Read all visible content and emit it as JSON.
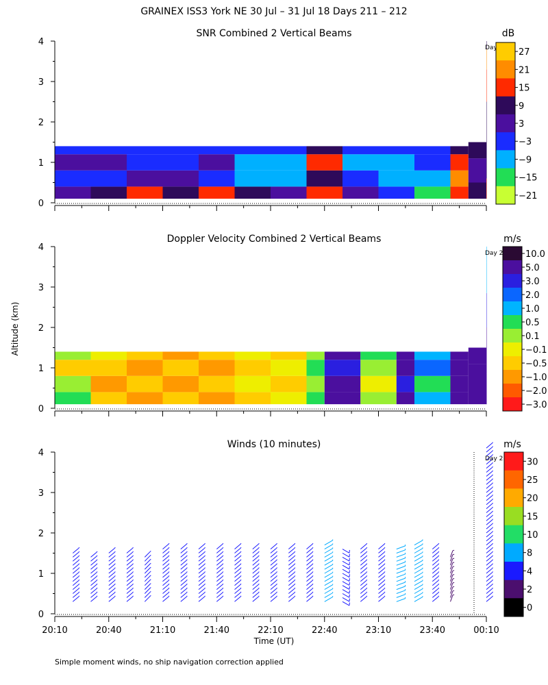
{
  "figure": {
    "title": "GRAINEX ISS3 York NE  30 Jul – 31 Jul 18 Days 211 – 212",
    "ylabel": "Altitude (km)",
    "xlabel": "Time (UT)",
    "footnote": "Simple moment winds, no ship navigation correction applied",
    "day_tag": "Day 2",
    "x_ticks": [
      "20:10",
      "20:40",
      "21:10",
      "21:40",
      "22:10",
      "22:40",
      "23:10",
      "23:40",
      "00:10"
    ],
    "y_ticks": [
      "0",
      "1",
      "2",
      "3",
      "4"
    ]
  },
  "chart_data": [
    {
      "type": "heatmap",
      "title": "SNR Combined 2 Vertical Beams",
      "units": "dB",
      "xlim": [
        "20:10",
        "00:10"
      ],
      "ylim": [
        0,
        4
      ],
      "ylabel": "Altitude (km)",
      "colorbar": {
        "labels": [
          "27",
          "21",
          "15",
          "9",
          "3",
          "−3",
          "−9",
          "−15",
          "−21"
        ],
        "values": [
          27,
          21,
          15,
          9,
          3,
          -3,
          -9,
          -15,
          -21
        ],
        "colors": [
          "#ffcc00",
          "#ff8c00",
          "#ff2a00",
          "#2e0a5a",
          "#4b0f9e",
          "#1a2cff",
          "#00b0ff",
          "#22dd55",
          "#c8ff33"
        ]
      },
      "columns": [
        {
          "time": "20:10",
          "top": 1.4,
          "profile": [
            [
              0.2,
              3
            ],
            [
              0.6,
              -3
            ],
            [
              1.0,
              3
            ],
            [
              1.4,
              -3
            ]
          ]
        },
        {
          "time": "20:30",
          "top": 1.4,
          "profile": [
            [
              0.2,
              9
            ],
            [
              0.6,
              -3
            ],
            [
              1.0,
              3
            ],
            [
              1.4,
              -3
            ]
          ]
        },
        {
          "time": "20:50",
          "top": 1.4,
          "profile": [
            [
              0.2,
              15
            ],
            [
              0.6,
              3
            ],
            [
              1.0,
              -3
            ],
            [
              1.4,
              -3
            ]
          ]
        },
        {
          "time": "21:10",
          "top": 1.4,
          "profile": [
            [
              0.2,
              9
            ],
            [
              0.6,
              3
            ],
            [
              1.0,
              -3
            ],
            [
              1.4,
              -3
            ]
          ]
        },
        {
          "time": "21:30",
          "top": 1.4,
          "profile": [
            [
              0.2,
              15
            ],
            [
              0.6,
              -3
            ],
            [
              1.0,
              3
            ],
            [
              1.4,
              -3
            ]
          ]
        },
        {
          "time": "21:50",
          "top": 1.4,
          "profile": [
            [
              0.2,
              9
            ],
            [
              0.6,
              -9
            ],
            [
              1.0,
              -9
            ],
            [
              1.4,
              -3
            ]
          ]
        },
        {
          "time": "22:10",
          "top": 1.4,
          "profile": [
            [
              0.2,
              3
            ],
            [
              0.6,
              -9
            ],
            [
              1.0,
              -9
            ],
            [
              1.4,
              -3
            ]
          ]
        },
        {
          "time": "22:30",
          "top": 1.4,
          "profile": [
            [
              0.2,
              15
            ],
            [
              0.6,
              9
            ],
            [
              1.0,
              15
            ],
            [
              1.4,
              9
            ]
          ]
        },
        {
          "time": "22:50",
          "top": 1.4,
          "profile": [
            [
              0.2,
              3
            ],
            [
              0.6,
              -3
            ],
            [
              1.0,
              -9
            ],
            [
              1.4,
              -3
            ]
          ]
        },
        {
          "time": "23:10",
          "top": 1.4,
          "profile": [
            [
              0.2,
              -3
            ],
            [
              0.6,
              -9
            ],
            [
              1.0,
              -9
            ],
            [
              1.4,
              -3
            ]
          ]
        },
        {
          "time": "23:30",
          "top": 1.4,
          "profile": [
            [
              0.2,
              -15
            ],
            [
              0.6,
              -9
            ],
            [
              1.0,
              -3
            ],
            [
              1.4,
              -3
            ]
          ]
        },
        {
          "time": "23:50",
          "top": 1.4,
          "profile": [
            [
              0.2,
              15
            ],
            [
              0.6,
              21
            ],
            [
              1.0,
              15
            ],
            [
              1.4,
              9
            ]
          ]
        },
        {
          "time": "00:00",
          "top": 1.5,
          "profile": [
            [
              0.2,
              9
            ],
            [
              0.8,
              3
            ],
            [
              1.4,
              9
            ]
          ]
        },
        {
          "time": "00:10",
          "top": 4.0,
          "profile": [
            [
              0.2,
              15
            ],
            [
              1.0,
              9
            ],
            [
              2.0,
              9
            ],
            [
              3.0,
              15
            ],
            [
              3.6,
              21
            ],
            [
              4.0,
              9
            ]
          ]
        }
      ]
    },
    {
      "type": "heatmap",
      "title": "Doppler Velocity Combined 2 Vertical Beams",
      "units": "m/s",
      "xlim": [
        "20:10",
        "00:10"
      ],
      "ylim": [
        0,
        4
      ],
      "ylabel": "Altitude (km)",
      "colorbar": {
        "labels": [
          "10.0",
          "5.0",
          "3.0",
          "2.0",
          "1.0",
          "0.5",
          "0.1",
          "−0.1",
          "−0.5",
          "−1.0",
          "−2.0",
          "−3.0"
        ],
        "values": [
          10.0,
          5.0,
          3.0,
          2.0,
          1.0,
          0.5,
          0.1,
          -0.1,
          -0.5,
          -1.0,
          -2.0,
          -3.0
        ],
        "colors": [
          "#2a0a33",
          "#4b0f9e",
          "#2a1fe0",
          "#0a66ff",
          "#00b4ff",
          "#22dd55",
          "#99ee33",
          "#eeee00",
          "#ffcc00",
          "#ff9900",
          "#ff5a00",
          "#ff1a1a"
        ]
      },
      "columns": [
        {
          "time": "20:10",
          "top": 1.4,
          "profile": [
            [
              0.2,
              0.5
            ],
            [
              0.6,
              0.1
            ],
            [
              1.0,
              -0.5
            ],
            [
              1.4,
              0.1
            ]
          ]
        },
        {
          "time": "20:30",
          "top": 1.4,
          "profile": [
            [
              0.2,
              -0.5
            ],
            [
              0.6,
              -1.0
            ],
            [
              1.0,
              -0.5
            ],
            [
              1.4,
              -0.1
            ]
          ]
        },
        {
          "time": "20:50",
          "top": 1.4,
          "profile": [
            [
              0.2,
              -1.0
            ],
            [
              0.6,
              -0.5
            ],
            [
              1.0,
              -1.0
            ],
            [
              1.4,
              -0.5
            ]
          ]
        },
        {
          "time": "21:10",
          "top": 1.4,
          "profile": [
            [
              0.2,
              -0.5
            ],
            [
              0.6,
              -1.0
            ],
            [
              1.0,
              -0.5
            ],
            [
              1.4,
              -1.0
            ]
          ]
        },
        {
          "time": "21:30",
          "top": 1.4,
          "profile": [
            [
              0.2,
              -1.0
            ],
            [
              0.6,
              -0.5
            ],
            [
              1.0,
              -1.0
            ],
            [
              1.4,
              -0.5
            ]
          ]
        },
        {
          "time": "21:50",
          "top": 1.4,
          "profile": [
            [
              0.2,
              -0.5
            ],
            [
              0.6,
              -0.1
            ],
            [
              1.0,
              -0.5
            ],
            [
              1.4,
              -0.1
            ]
          ]
        },
        {
          "time": "22:10",
          "top": 1.4,
          "profile": [
            [
              0.2,
              -0.1
            ],
            [
              0.6,
              -0.5
            ],
            [
              1.0,
              -0.1
            ],
            [
              1.4,
              -0.5
            ]
          ]
        },
        {
          "time": "22:30",
          "top": 1.4,
          "profile": [
            [
              0.2,
              0.5
            ],
            [
              0.6,
              0.1
            ],
            [
              1.0,
              0.5
            ],
            [
              1.4,
              0.1
            ]
          ]
        },
        {
          "time": "22:40",
          "top": 1.4,
          "profile": [
            [
              0.2,
              5.0
            ],
            [
              0.6,
              5.0
            ],
            [
              1.0,
              3.0
            ],
            [
              1.4,
              5.0
            ]
          ]
        },
        {
          "time": "23:00",
          "top": 1.4,
          "profile": [
            [
              0.2,
              0.1
            ],
            [
              0.6,
              -0.1
            ],
            [
              1.0,
              0.1
            ],
            [
              1.4,
              0.5
            ]
          ]
        },
        {
          "time": "23:20",
          "top": 1.4,
          "profile": [
            [
              0.2,
              5.0
            ],
            [
              0.6,
              3.0
            ],
            [
              1.0,
              5.0
            ],
            [
              1.4,
              5.0
            ]
          ]
        },
        {
          "time": "23:30",
          "top": 1.4,
          "profile": [
            [
              0.2,
              1.0
            ],
            [
              0.6,
              0.5
            ],
            [
              1.0,
              2.0
            ],
            [
              1.4,
              1.0
            ]
          ]
        },
        {
          "time": "23:50",
          "top": 1.4,
          "profile": [
            [
              0.2,
              5.0
            ],
            [
              0.6,
              5.0
            ],
            [
              1.0,
              5.0
            ],
            [
              1.4,
              5.0
            ]
          ]
        },
        {
          "time": "00:00",
          "top": 1.5,
          "profile": [
            [
              0.2,
              5.0
            ],
            [
              0.8,
              5.0
            ],
            [
              1.4,
              5.0
            ]
          ]
        },
        {
          "time": "00:10",
          "top": 4.0,
          "profile": [
            [
              0.2,
              5.0
            ],
            [
              1.5,
              5.0
            ],
            [
              2.5,
              3.0
            ],
            [
              3.2,
              1.0
            ],
            [
              4.0,
              1.0
            ]
          ]
        }
      ]
    },
    {
      "type": "scatter",
      "subtype": "wind-barbs",
      "title": "Winds (10 minutes)",
      "units": "m/s",
      "xlim": [
        "20:10",
        "00:10"
      ],
      "ylim": [
        0,
        4
      ],
      "xlabel": "Time (UT)",
      "ylabel": "Altitude (km)",
      "colorbar": {
        "labels": [
          "30",
          "25",
          "20",
          "15",
          "10",
          "8",
          "4",
          "2",
          "0"
        ],
        "values": [
          30,
          25,
          20,
          15,
          10,
          8,
          4,
          2,
          0
        ],
        "colors": [
          "#ff1a1a",
          "#ff6600",
          "#ffaa00",
          "#99dd22",
          "#22dd66",
          "#00aaff",
          "#1a1aff",
          "#4b0f6e",
          "#000000"
        ]
      },
      "profiles": [
        {
          "time": "20:20",
          "top": 1.5,
          "speed": 4,
          "direction_deg": 230
        },
        {
          "time": "20:30",
          "top": 1.4,
          "speed": 4,
          "direction_deg": 230
        },
        {
          "time": "20:40",
          "top": 1.5,
          "speed": 4,
          "direction_deg": 230
        },
        {
          "time": "20:50",
          "top": 1.5,
          "speed": 4,
          "direction_deg": 230
        },
        {
          "time": "21:00",
          "top": 1.4,
          "speed": 4,
          "direction_deg": 225
        },
        {
          "time": "21:10",
          "top": 1.6,
          "speed": 4,
          "direction_deg": 230
        },
        {
          "time": "21:20",
          "top": 1.6,
          "speed": 4,
          "direction_deg": 230
        },
        {
          "time": "21:30",
          "top": 1.6,
          "speed": 4,
          "direction_deg": 230
        },
        {
          "time": "21:40",
          "top": 1.6,
          "speed": 4,
          "direction_deg": 230
        },
        {
          "time": "21:50",
          "top": 1.6,
          "speed": 4,
          "direction_deg": 230
        },
        {
          "time": "22:00",
          "top": 1.6,
          "speed": 4,
          "direction_deg": 230
        },
        {
          "time": "22:10",
          "top": 1.6,
          "speed": 4,
          "direction_deg": 230
        },
        {
          "time": "22:20",
          "top": 1.6,
          "speed": 4,
          "direction_deg": 230
        },
        {
          "time": "22:30",
          "top": 1.6,
          "speed": 4,
          "direction_deg": 230
        },
        {
          "time": "22:40",
          "top": 1.7,
          "speed": 8,
          "direction_deg": 240
        },
        {
          "time": "22:50",
          "top": 1.6,
          "speed": 4,
          "direction_deg": 300
        },
        {
          "time": "23:00",
          "top": 1.6,
          "speed": 4,
          "direction_deg": 230
        },
        {
          "time": "23:10",
          "top": 1.6,
          "speed": 4,
          "direction_deg": 230
        },
        {
          "time": "23:20",
          "top": 1.6,
          "speed": 8,
          "direction_deg": 250
        },
        {
          "time": "23:30",
          "top": 1.7,
          "speed": 8,
          "direction_deg": 240
        },
        {
          "time": "23:40",
          "top": 1.6,
          "speed": 4,
          "direction_deg": 230
        },
        {
          "time": "23:50",
          "top": 1.4,
          "speed": 2,
          "direction_deg": 200
        },
        {
          "time": "00:10",
          "top": 4.1,
          "speed": 4,
          "direction_deg": 230
        }
      ]
    }
  ]
}
